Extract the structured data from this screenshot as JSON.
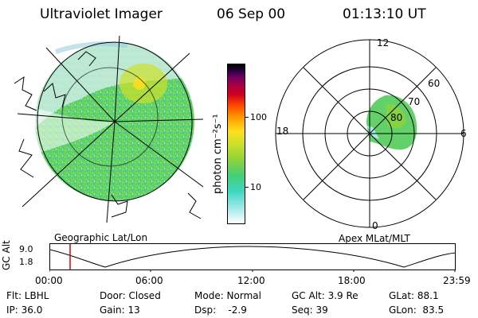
{
  "header": {
    "instrument": "Ultraviolet Imager",
    "date": "06 Sep 00",
    "time": "01:13:10 UT"
  },
  "geo_panel": {
    "label": "Geographic Lat/Lon"
  },
  "colorbar": {
    "unit": "photon cm⁻²s⁻¹",
    "ticks": [
      "100",
      "10"
    ],
    "scale": "log",
    "stops": [
      "#ffffff",
      "#9ee8e8",
      "#3fd7c4",
      "#42cf78",
      "#8fd23a",
      "#cde02a",
      "#ffe01a",
      "#ffa000",
      "#ff4a00",
      "#d0001e",
      "#a80046",
      "#700060",
      "#2a0040",
      "#000000"
    ]
  },
  "polar_panel": {
    "label": "Apex MLat/MLT",
    "mlt_labels": {
      "top": "12",
      "right": "6",
      "bottom": "0",
      "left": "18"
    },
    "lat_labels": [
      "60",
      "70",
      "80"
    ]
  },
  "altitude_plot": {
    "ylabel": "GC Alt",
    "yticks": [
      "9.0",
      "1.8"
    ],
    "xticks": [
      "00:00",
      "06:00",
      "12:00",
      "18:00",
      "23:59"
    ],
    "marker_time": "01:13:10",
    "marker_color": "#e00000"
  },
  "footer": {
    "row1": [
      "Flt: LBHL",
      "Door: Closed",
      "Mode: Normal",
      "GC Alt: 3.9 Re",
      "GLat: 88.1"
    ],
    "row2": [
      "IP: 36.0",
      "Gain: 13",
      "Dsp:    -2.9",
      "Seq: 39",
      "GLon:  83.5"
    ]
  }
}
